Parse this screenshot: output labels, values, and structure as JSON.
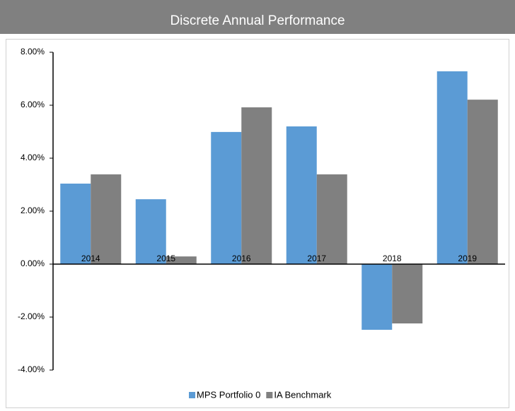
{
  "chart_data": {
    "type": "bar",
    "title": "Discrete Annual Performance",
    "categories": [
      "2014",
      "2015",
      "2016",
      "2017",
      "2018",
      "2019"
    ],
    "series": [
      {
        "name": "MPS Portfolio 0",
        "color": "#5b9bd5",
        "values": [
          3.04,
          2.45,
          4.99,
          5.2,
          -2.48,
          7.28
        ]
      },
      {
        "name": "IA Benchmark",
        "color": "#808080",
        "values": [
          3.39,
          0.29,
          5.92,
          3.39,
          -2.24,
          6.21
        ]
      }
    ],
    "ylim": [
      -4,
      8
    ],
    "yticks": [
      {
        "value": -4,
        "label": "-4.00%"
      },
      {
        "value": -2,
        "label": "-2.00%"
      },
      {
        "value": 0,
        "label": "0.00%"
      },
      {
        "value": 2,
        "label": "2.00%"
      },
      {
        "value": 4,
        "label": "4.00%"
      },
      {
        "value": 6,
        "label": "6.00%"
      },
      {
        "value": 8,
        "label": "8.00%"
      }
    ],
    "legend": "bottom"
  }
}
